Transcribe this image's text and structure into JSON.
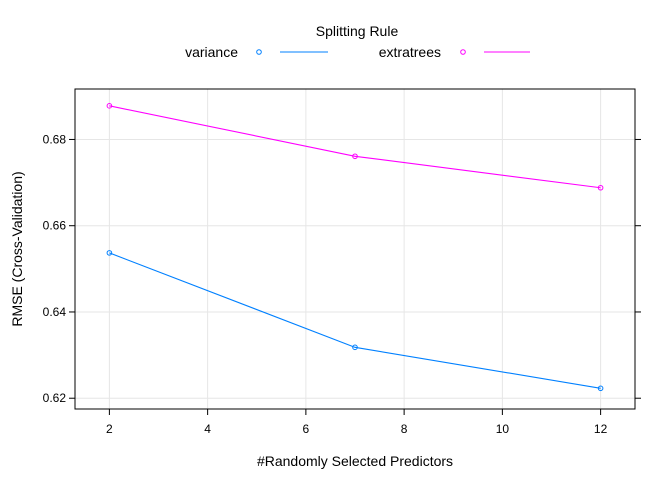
{
  "chart_data": {
    "type": "line",
    "legend_title": "Splitting Rule",
    "legend_placement": "top",
    "xlabel": "#Randomly Selected Predictors",
    "ylabel": "RMSE (Cross-Validation)",
    "xlim": [
      1.3,
      12.7
    ],
    "ylim": [
      0.6175,
      0.6917
    ],
    "x_ticks": [
      2,
      4,
      6,
      8,
      10,
      12
    ],
    "y_ticks": [
      0.62,
      0.64,
      0.66,
      0.68
    ],
    "x_tick_labels": [
      "2",
      "4",
      "6",
      "8",
      "10",
      "12"
    ],
    "y_tick_labels": [
      "0.62",
      "0.64",
      "0.66",
      "0.68"
    ],
    "grid": true,
    "series": [
      {
        "name": "variance",
        "color": "#0080ff",
        "marker": "circle",
        "x": [
          2,
          7,
          12
        ],
        "y": [
          0.6537,
          0.6318,
          0.6223
        ]
      },
      {
        "name": "extratrees",
        "color": "#ff00ff",
        "marker": "circle",
        "x": [
          2,
          7,
          12
        ],
        "y": [
          0.6878,
          0.6761,
          0.6688
        ]
      }
    ]
  }
}
